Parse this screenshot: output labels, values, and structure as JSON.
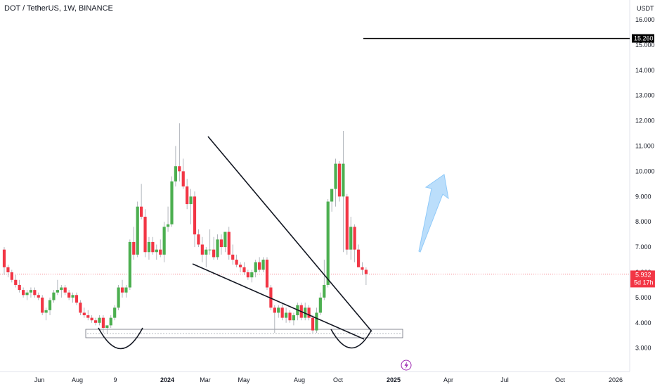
{
  "header": {
    "symbol_title": "DOT / TetherUS, 1W, BINANCE",
    "currency": "USDT"
  },
  "colors": {
    "up": "#4caf50",
    "down": "#f23645",
    "wick": "#9ea3ab",
    "price_bg": "#f23645",
    "level_bg": "#000000",
    "arrow": "#90caf9"
  },
  "icons": {
    "events": "lightning-icon"
  },
  "chart_data": {
    "type": "candlestick",
    "title": "DOT / TetherUS, 1W, BINANCE",
    "yunit": "USDT",
    "ylim": [
      2.6,
      16.3
    ],
    "y_ticks": [
      "16.000",
      "15.000",
      "14.000",
      "13.000",
      "12.000",
      "11.000",
      "10.000",
      "9.000",
      "8.000",
      "7.000",
      "6.000",
      "5.000",
      "4.000",
      "3.000"
    ],
    "x_ticks": [
      "Jun",
      "Aug",
      "9",
      "2024",
      "Mar",
      "May",
      "Aug",
      "Oct",
      "2025",
      "Apr",
      "Jul",
      "Oct",
      "2026"
    ],
    "x_ticks_bold": [
      "2024",
      "2025"
    ],
    "candles": [
      [
        6.9,
        7.0,
        5.9,
        6.2
      ],
      [
        6.2,
        6.3,
        5.8,
        6.0
      ],
      [
        6.0,
        6.1,
        5.6,
        5.7
      ],
      [
        5.7,
        5.9,
        5.4,
        5.5
      ],
      [
        5.5,
        5.7,
        5.2,
        5.3
      ],
      [
        5.3,
        5.4,
        5.0,
        5.1
      ],
      [
        5.1,
        5.3,
        4.9,
        5.2
      ],
      [
        5.2,
        5.4,
        5.0,
        5.3
      ],
      [
        5.3,
        5.4,
        5.0,
        5.1
      ],
      [
        5.1,
        5.2,
        4.9,
        5.0
      ],
      [
        5.0,
        5.1,
        4.3,
        4.4
      ],
      [
        4.4,
        4.6,
        4.1,
        4.5
      ],
      [
        4.5,
        5.0,
        4.3,
        4.9
      ],
      [
        4.9,
        5.3,
        4.8,
        5.2
      ],
      [
        5.2,
        5.7,
        5.1,
        5.3
      ],
      [
        5.3,
        5.5,
        5.0,
        5.4
      ],
      [
        5.4,
        5.5,
        5.1,
        5.2
      ],
      [
        5.2,
        5.3,
        4.9,
        5.0
      ],
      [
        5.0,
        5.2,
        4.8,
        5.1
      ],
      [
        5.1,
        5.2,
        4.7,
        4.8
      ],
      [
        4.8,
        4.9,
        4.3,
        4.4
      ],
      [
        4.4,
        4.6,
        4.2,
        4.3
      ],
      [
        4.3,
        4.5,
        4.1,
        4.2
      ],
      [
        4.2,
        4.3,
        4.0,
        4.1
      ],
      [
        4.1,
        4.2,
        3.9,
        4.0
      ],
      [
        4.0,
        4.3,
        3.9,
        4.2
      ],
      [
        4.2,
        4.3,
        3.6,
        3.8
      ],
      [
        3.8,
        3.9,
        3.55,
        3.9
      ],
      [
        3.9,
        4.3,
        3.8,
        4.2
      ],
      [
        4.2,
        4.7,
        4.1,
        4.6
      ],
      [
        4.6,
        5.5,
        4.5,
        5.4
      ],
      [
        5.4,
        5.7,
        5.0,
        5.2
      ],
      [
        5.2,
        5.5,
        5.0,
        5.4
      ],
      [
        5.4,
        7.3,
        5.3,
        7.2
      ],
      [
        7.2,
        7.8,
        6.5,
        6.7
      ],
      [
        6.7,
        8.8,
        6.6,
        8.6
      ],
      [
        8.6,
        9.5,
        8.1,
        8.2
      ],
      [
        8.2,
        8.5,
        6.6,
        6.8
      ],
      [
        6.8,
        7.4,
        6.5,
        7.2
      ],
      [
        7.2,
        7.4,
        6.7,
        6.8
      ],
      [
        6.8,
        7.1,
        6.5,
        6.9
      ],
      [
        6.9,
        7.3,
        6.6,
        6.7
      ],
      [
        6.7,
        8.0,
        6.4,
        7.8
      ],
      [
        7.8,
        8.6,
        7.6,
        7.9
      ],
      [
        7.9,
        9.8,
        7.8,
        9.6
      ],
      [
        9.6,
        11.0,
        9.4,
        10.2
      ],
      [
        10.2,
        11.9,
        9.6,
        10.0
      ],
      [
        10.0,
        10.5,
        9.3,
        9.4
      ],
      [
        9.4,
        9.7,
        8.5,
        8.7
      ],
      [
        8.7,
        9.3,
        7.9,
        9.0
      ],
      [
        9.0,
        9.2,
        7.0,
        7.5
      ],
      [
        7.5,
        7.7,
        7.0,
        7.1
      ],
      [
        7.1,
        7.4,
        6.4,
        6.7
      ],
      [
        6.7,
        7.0,
        6.2,
        6.9
      ],
      [
        6.9,
        7.7,
        6.7,
        6.9
      ],
      [
        6.9,
        7.4,
        6.5,
        6.6
      ],
      [
        6.6,
        7.5,
        6.5,
        7.3
      ],
      [
        7.3,
        7.5,
        6.7,
        7.0
      ],
      [
        7.0,
        7.6,
        6.8,
        7.6
      ],
      [
        7.6,
        7.8,
        6.5,
        6.7
      ],
      [
        6.7,
        7.1,
        6.3,
        6.5
      ],
      [
        6.5,
        6.7,
        6.2,
        6.3
      ],
      [
        6.3,
        6.4,
        6.0,
        6.2
      ],
      [
        6.2,
        6.4,
        5.9,
        6.0
      ],
      [
        6.0,
        6.1,
        5.7,
        5.8
      ],
      [
        5.8,
        6.1,
        5.6,
        6.0
      ],
      [
        6.0,
        6.5,
        5.8,
        6.4
      ],
      [
        6.4,
        6.6,
        6.0,
        6.1
      ],
      [
        6.1,
        6.6,
        6.0,
        6.5
      ],
      [
        6.5,
        6.6,
        5.3,
        5.4
      ],
      [
        5.4,
        5.5,
        4.5,
        4.6
      ],
      [
        4.6,
        4.7,
        3.6,
        4.4
      ],
      [
        4.4,
        4.7,
        4.2,
        4.6
      ],
      [
        4.6,
        4.8,
        4.1,
        4.2
      ],
      [
        4.2,
        4.6,
        4.0,
        4.4
      ],
      [
        4.4,
        4.5,
        4.0,
        4.1
      ],
      [
        4.1,
        4.4,
        3.9,
        4.3
      ],
      [
        4.3,
        4.8,
        4.1,
        4.7
      ],
      [
        4.7,
        4.8,
        4.1,
        4.2
      ],
      [
        4.2,
        4.8,
        4.1,
        4.6
      ],
      [
        4.6,
        4.7,
        4.1,
        4.2
      ],
      [
        4.2,
        4.3,
        3.6,
        3.7
      ],
      [
        3.7,
        4.6,
        3.6,
        4.4
      ],
      [
        4.4,
        5.2,
        4.3,
        5.0
      ],
      [
        5.0,
        6.5,
        4.9,
        5.5
      ],
      [
        5.5,
        8.9,
        5.4,
        8.8
      ],
      [
        8.8,
        9.3,
        8.4,
        9.3
      ],
      [
        9.3,
        10.5,
        8.6,
        10.3
      ],
      [
        10.3,
        10.4,
        8.8,
        9.0
      ],
      [
        9.0,
        11.6,
        6.8,
        10.3
      ],
      [
        9.0,
        9.1,
        6.7,
        6.9
      ],
      [
        6.9,
        8.2,
        6.5,
        7.8
      ],
      [
        7.8,
        7.9,
        6.4,
        6.9
      ],
      [
        6.9,
        7.1,
        6.2,
        6.2
      ],
      [
        6.2,
        6.4,
        5.9,
        6.1
      ],
      [
        6.1,
        6.2,
        5.5,
        5.932
      ]
    ],
    "last_price": "5.932",
    "countdown": "5d 17h",
    "target_level": "15.260",
    "target_value": 15.26
  }
}
